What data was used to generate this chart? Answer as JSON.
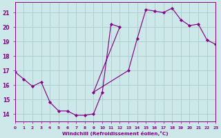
{
  "xlabel": "Windchill (Refroidissement éolien,°C)",
  "bg_color": "#cce8e8",
  "grid_color": "#aacccc",
  "line_color": "#880088",
  "xlim": [
    0,
    23
  ],
  "ylim": [
    13.5,
    21.7
  ],
  "xticks": [
    0,
    1,
    2,
    3,
    4,
    5,
    6,
    7,
    8,
    9,
    10,
    11,
    12,
    13,
    14,
    15,
    16,
    17,
    18,
    19,
    20,
    21,
    22,
    23
  ],
  "yticks": [
    14,
    15,
    16,
    17,
    18,
    19,
    20,
    21
  ],
  "data_x": [
    0,
    1,
    2,
    3,
    4,
    5,
    6,
    7,
    8,
    9,
    10,
    11,
    12,
    9,
    13,
    14,
    15,
    16,
    17,
    18,
    19,
    20,
    21,
    22,
    23
  ],
  "data_y": [
    16.9,
    16.4,
    15.9,
    16.2,
    14.8,
    14.2,
    14.2,
    13.9,
    13.9,
    14.0,
    15.5,
    20.2,
    20.0,
    15.5,
    17.0,
    19.2,
    21.2,
    21.1,
    21.0,
    21.3,
    20.5,
    20.1,
    20.2,
    19.1,
    18.8
  ]
}
